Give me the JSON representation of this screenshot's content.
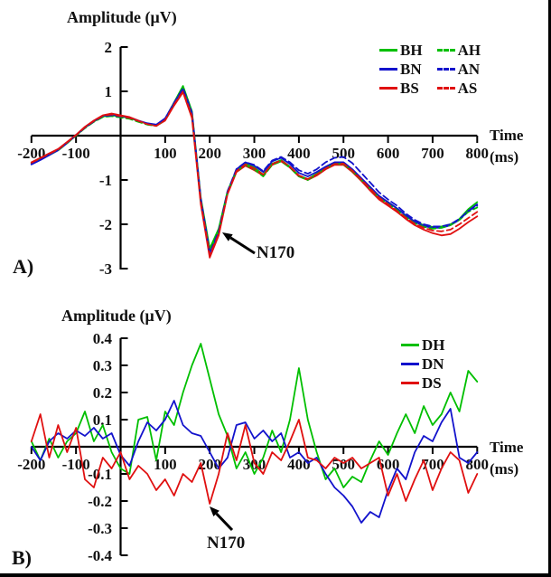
{
  "figure": {
    "panels": [
      {
        "label": "A)",
        "annotation": "N170",
        "time_label": "Time",
        "time_unit": "(ms)"
      },
      {
        "label": "B)",
        "annotation": "N170",
        "time_label": "Time",
        "time_unit": "(ms)"
      }
    ],
    "colors": {
      "green": "#00bf00",
      "blue": "#1212cc",
      "red": "#e01010",
      "axis": "#000000"
    }
  },
  "chart_data": [
    {
      "type": "line",
      "panel": "A",
      "title": "Amplitude (μV)",
      "xlabel": "Time (ms)",
      "ylabel": "Amplitude (μV)",
      "xlim": [
        -200,
        800
      ],
      "ylim": [
        -3,
        2
      ],
      "x_ticks": [
        -200,
        -100,
        100,
        200,
        300,
        400,
        500,
        600,
        700,
        800
      ],
      "y_ticks": [
        2,
        1,
        -1,
        -2,
        -3
      ],
      "grid": false,
      "legend_position": "top-right",
      "annotation": {
        "text": "N170",
        "points_at_ms": 200
      },
      "x_start": -200,
      "x_step": 20,
      "series": [
        {
          "name": "BH",
          "color": "#00bf00",
          "dash": false,
          "values": [
            -0.62,
            -0.52,
            -0.42,
            -0.32,
            -0.16,
            0.0,
            0.18,
            0.32,
            0.43,
            0.46,
            0.43,
            0.4,
            0.33,
            0.27,
            0.24,
            0.38,
            0.75,
            1.12,
            0.55,
            -1.4,
            -2.55,
            -2.1,
            -1.25,
            -0.78,
            -0.63,
            -0.72,
            -0.88,
            -0.63,
            -0.55,
            -0.7,
            -0.9,
            -0.98,
            -0.86,
            -0.73,
            -0.63,
            -0.62,
            -0.78,
            -0.98,
            -1.18,
            -1.38,
            -1.5,
            -1.64,
            -1.8,
            -1.94,
            -2.02,
            -2.06,
            -2.05,
            -2.0,
            -1.88,
            -1.66,
            -1.5
          ]
        },
        {
          "name": "BN",
          "color": "#1212cc",
          "dash": false,
          "values": [
            -0.65,
            -0.55,
            -0.44,
            -0.33,
            -0.17,
            0.01,
            0.19,
            0.33,
            0.45,
            0.48,
            0.45,
            0.41,
            0.34,
            0.28,
            0.25,
            0.39,
            0.73,
            1.06,
            0.5,
            -1.45,
            -2.65,
            -2.18,
            -1.28,
            -0.76,
            -0.6,
            -0.68,
            -0.82,
            -0.58,
            -0.5,
            -0.64,
            -0.84,
            -0.92,
            -0.82,
            -0.7,
            -0.6,
            -0.6,
            -0.76,
            -0.96,
            -1.16,
            -1.36,
            -1.5,
            -1.64,
            -1.8,
            -1.94,
            -2.04,
            -2.08,
            -2.08,
            -2.02,
            -1.9,
            -1.7,
            -1.55
          ]
        },
        {
          "name": "BS",
          "color": "#e01010",
          "dash": false,
          "values": [
            -0.6,
            -0.5,
            -0.4,
            -0.3,
            -0.14,
            0.02,
            0.2,
            0.34,
            0.46,
            0.5,
            0.46,
            0.42,
            0.34,
            0.26,
            0.22,
            0.34,
            0.68,
            0.98,
            0.4,
            -1.55,
            -2.75,
            -2.25,
            -1.32,
            -0.82,
            -0.68,
            -0.78,
            -0.9,
            -0.66,
            -0.58,
            -0.72,
            -0.92,
            -1.0,
            -0.9,
            -0.76,
            -0.66,
            -0.66,
            -0.82,
            -1.02,
            -1.24,
            -1.44,
            -1.58,
            -1.72,
            -1.88,
            -2.02,
            -2.12,
            -2.2,
            -2.25,
            -2.22,
            -2.1,
            -1.95,
            -1.82
          ]
        },
        {
          "name": "AH",
          "color": "#00bf00",
          "dash": true,
          "values": [
            -0.63,
            -0.53,
            -0.43,
            -0.33,
            -0.17,
            0.0,
            0.17,
            0.31,
            0.42,
            0.44,
            0.41,
            0.38,
            0.31,
            0.25,
            0.22,
            0.36,
            0.72,
            1.08,
            0.5,
            -1.45,
            -2.6,
            -2.14,
            -1.27,
            -0.8,
            -0.66,
            -0.76,
            -0.92,
            -0.66,
            -0.58,
            -0.72,
            -0.92,
            -1.0,
            -0.88,
            -0.74,
            -0.64,
            -0.64,
            -0.8,
            -1.0,
            -1.2,
            -1.4,
            -1.54,
            -1.68,
            -1.84,
            -1.98,
            -2.06,
            -2.1,
            -2.08,
            -2.02,
            -1.9,
            -1.72,
            -1.62
          ]
        },
        {
          "name": "AN",
          "color": "#1212cc",
          "dash": true,
          "values": [
            -0.64,
            -0.54,
            -0.43,
            -0.32,
            -0.16,
            0.01,
            0.18,
            0.32,
            0.44,
            0.46,
            0.43,
            0.4,
            0.33,
            0.27,
            0.24,
            0.38,
            0.74,
            1.07,
            0.52,
            -1.42,
            -2.65,
            -2.16,
            -1.26,
            -0.75,
            -0.6,
            -0.66,
            -0.8,
            -0.56,
            -0.48,
            -0.6,
            -0.78,
            -0.86,
            -0.76,
            -0.6,
            -0.5,
            -0.48,
            -0.62,
            -0.84,
            -1.06,
            -1.28,
            -1.44,
            -1.58,
            -1.76,
            -1.9,
            -2.0,
            -2.05,
            -2.05,
            -2.0,
            -1.88,
            -1.7,
            -1.58
          ]
        },
        {
          "name": "AS",
          "color": "#e01010",
          "dash": true,
          "values": [
            -0.61,
            -0.51,
            -0.41,
            -0.31,
            -0.15,
            0.01,
            0.19,
            0.33,
            0.45,
            0.48,
            0.44,
            0.4,
            0.33,
            0.26,
            0.22,
            0.35,
            0.7,
            1.0,
            0.45,
            -1.5,
            -2.7,
            -2.22,
            -1.3,
            -0.8,
            -0.65,
            -0.74,
            -0.88,
            -0.64,
            -0.56,
            -0.7,
            -0.9,
            -0.98,
            -0.88,
            -0.74,
            -0.64,
            -0.63,
            -0.79,
            -0.99,
            -1.2,
            -1.4,
            -1.55,
            -1.7,
            -1.85,
            -1.99,
            -2.08,
            -2.14,
            -2.16,
            -2.12,
            -2.0,
            -1.86,
            -1.72
          ]
        }
      ]
    },
    {
      "type": "line",
      "panel": "B",
      "title": "Amplitude (μV)",
      "xlabel": "Time (ms)",
      "ylabel": "Amplitude (μV)",
      "xlim": [
        -200,
        800
      ],
      "ylim": [
        -0.4,
        0.4
      ],
      "x_ticks": [
        -200,
        -100,
        100,
        200,
        300,
        400,
        500,
        600,
        700,
        800
      ],
      "y_ticks": [
        0.4,
        0.3,
        0.2,
        0.1,
        -0.1,
        -0.2,
        -0.3,
        -0.4
      ],
      "grid": false,
      "legend_position": "top-right",
      "annotation": {
        "text": "N170",
        "points_at_ms": 200
      },
      "x_start": -200,
      "x_step": 20,
      "series": [
        {
          "name": "DH",
          "color": "#00bf00",
          "dash": false,
          "values": [
            0.02,
            -0.05,
            0.03,
            -0.04,
            0.02,
            0.05,
            0.13,
            0.02,
            0.08,
            -0.02,
            -0.08,
            -0.1,
            0.1,
            0.11,
            -0.05,
            0.13,
            0.08,
            0.2,
            0.3,
            0.38,
            0.25,
            0.12,
            0.04,
            -0.08,
            -0.02,
            -0.1,
            -0.04,
            0.06,
            -0.02,
            0.1,
            0.29,
            0.1,
            -0.02,
            -0.12,
            -0.08,
            -0.15,
            -0.11,
            -0.13,
            -0.05,
            0.02,
            -0.03,
            0.05,
            0.12,
            0.05,
            0.15,
            0.08,
            0.12,
            0.2,
            0.13,
            0.28,
            0.24
          ]
        },
        {
          "name": "DN",
          "color": "#1212cc",
          "dash": false,
          "values": [
            0.0,
            -0.05,
            0.02,
            0.05,
            0.03,
            0.06,
            0.04,
            0.07,
            0.03,
            0.05,
            -0.03,
            -0.07,
            0.02,
            0.09,
            0.06,
            0.1,
            0.17,
            0.08,
            0.05,
            0.04,
            -0.02,
            -0.08,
            -0.04,
            0.08,
            0.09,
            0.03,
            0.06,
            0.02,
            0.05,
            -0.04,
            -0.02,
            -0.06,
            -0.04,
            -0.1,
            -0.15,
            -0.18,
            -0.22,
            -0.28,
            -0.24,
            -0.26,
            -0.16,
            -0.08,
            -0.12,
            -0.02,
            0.04,
            0.02,
            0.09,
            0.14,
            -0.04,
            -0.06,
            -0.02
          ]
        },
        {
          "name": "DS",
          "color": "#e01010",
          "dash": false,
          "values": [
            0.02,
            0.12,
            -0.04,
            0.08,
            -0.02,
            0.07,
            -0.12,
            -0.15,
            -0.04,
            -0.08,
            -0.02,
            -0.12,
            -0.07,
            -0.1,
            -0.16,
            -0.12,
            -0.18,
            -0.1,
            -0.13,
            -0.06,
            -0.21,
            -0.1,
            0.05,
            -0.05,
            0.08,
            -0.06,
            -0.1,
            -0.02,
            -0.05,
            0.02,
            0.1,
            -0.04,
            -0.05,
            -0.08,
            -0.04,
            -0.06,
            -0.04,
            -0.08,
            -0.06,
            -0.04,
            -0.18,
            -0.1,
            -0.2,
            -0.12,
            -0.05,
            -0.16,
            -0.08,
            -0.02,
            -0.05,
            -0.17,
            -0.1
          ]
        }
      ]
    }
  ]
}
